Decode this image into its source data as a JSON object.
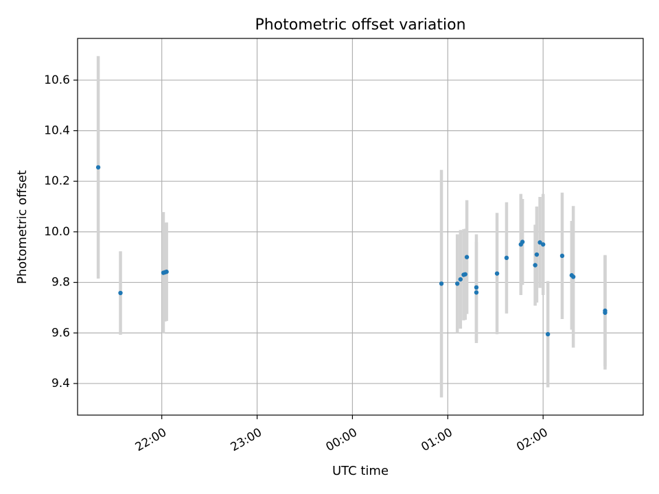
{
  "chart_data": {
    "type": "scatter",
    "title": "Photometric offset variation",
    "xlabel": "UTC time",
    "ylabel": "Photometric offset",
    "x_is_time": true,
    "x_format": "HH:MM",
    "xlim": [
      "21:07",
      "03:03"
    ],
    "ylim": [
      9.275,
      10.765
    ],
    "x_ticks": [
      "22:00",
      "23:00",
      "00:00",
      "01:00",
      "02:00"
    ],
    "y_ticks": [
      9.4,
      9.6,
      9.8,
      10.0,
      10.2,
      10.4,
      10.6
    ],
    "grid": true,
    "marker_color": "#1f77b4",
    "errorbar_color": "#d3d3d3",
    "points": [
      {
        "x": "21:20",
        "y": 10.255,
        "err": 0.44
      },
      {
        "x": "21:34",
        "y": 9.758,
        "err": 0.165
      },
      {
        "x": "22:01",
        "y": 9.838,
        "err": 0.24
      },
      {
        "x": "22:02",
        "y": 9.84,
        "err": 0.195
      },
      {
        "x": "22:03",
        "y": 9.842,
        "err": 0.195
      },
      {
        "x": "00:56",
        "y": 9.795,
        "err": 0.45
      },
      {
        "x": "01:06",
        "y": 9.795,
        "err": 0.195
      },
      {
        "x": "01:08",
        "y": 9.812,
        "err": 0.195
      },
      {
        "x": "01:10",
        "y": 9.83,
        "err": 0.18
      },
      {
        "x": "01:11",
        "y": 9.832,
        "err": 0.18
      },
      {
        "x": "01:12",
        "y": 9.9,
        "err": 0.225
      },
      {
        "x": "01:18",
        "y": 9.78,
        "err": 0.21
      },
      {
        "x": "01:18",
        "y": 9.76,
        "err": 0.2
      },
      {
        "x": "01:31",
        "y": 9.835,
        "err": 0.24
      },
      {
        "x": "01:37",
        "y": 9.897,
        "err": 0.22
      },
      {
        "x": "01:46",
        "y": 9.95,
        "err": 0.2
      },
      {
        "x": "01:47",
        "y": 9.96,
        "err": 0.17
      },
      {
        "x": "01:55",
        "y": 9.868,
        "err": 0.16
      },
      {
        "x": "01:56",
        "y": 9.91,
        "err": 0.19
      },
      {
        "x": "01:58",
        "y": 9.958,
        "err": 0.18
      },
      {
        "x": "02:00",
        "y": 9.95,
        "err": 0.2
      },
      {
        "x": "02:03",
        "y": 9.595,
        "err": 0.21
      },
      {
        "x": "02:12",
        "y": 9.905,
        "err": 0.25
      },
      {
        "x": "02:18",
        "y": 9.828,
        "err": 0.215
      },
      {
        "x": "02:19",
        "y": 9.822,
        "err": 0.28
      },
      {
        "x": "02:39",
        "y": 9.688,
        "err": 0.22
      },
      {
        "x": "02:39",
        "y": 9.68,
        "err": 0.225
      }
    ]
  }
}
